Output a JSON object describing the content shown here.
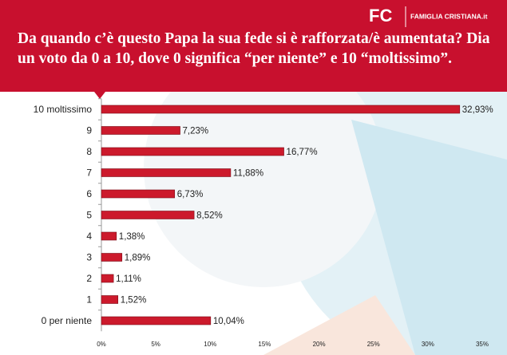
{
  "logo": "FC",
  "brand": "FAMIGLIA CRISTIANA.it",
  "chart_data": {
    "type": "hbar",
    "title": "Da quando c’è questo Papa la sua fede si è rafforzata/è aumentata? Dia un voto da 0 a 10, dove 0 significa “per niente” e 10 “moltissimo”.",
    "categories": [
      "10 moltissimo",
      "9",
      "8",
      "7",
      "6",
      "5",
      "4",
      "3",
      "2",
      "1",
      "0 per niente"
    ],
    "values": [
      32.93,
      7.23,
      16.77,
      11.88,
      6.73,
      8.52,
      1.38,
      1.89,
      1.11,
      1.52,
      10.04
    ],
    "value_labels": [
      "32,93%",
      "7,23%",
      "16,77%",
      "11,88%",
      "6,73%",
      "8,52%",
      "1,38%",
      "1,89%",
      "1,11%",
      "1,52%",
      "10,04%"
    ],
    "color": "#cc1a2c",
    "xlim": [
      0,
      35
    ],
    "xticks": [
      {
        "value": 0,
        "label": "0%"
      },
      {
        "value": 5,
        "label": "5%"
      },
      {
        "value": 10,
        "label": "10%"
      },
      {
        "value": 15,
        "label": "15%"
      },
      {
        "value": 20,
        "label": "20%"
      },
      {
        "value": 25,
        "label": "25%"
      },
      {
        "value": 30,
        "label": "30%"
      },
      {
        "value": 35,
        "label": "35%"
      }
    ]
  }
}
